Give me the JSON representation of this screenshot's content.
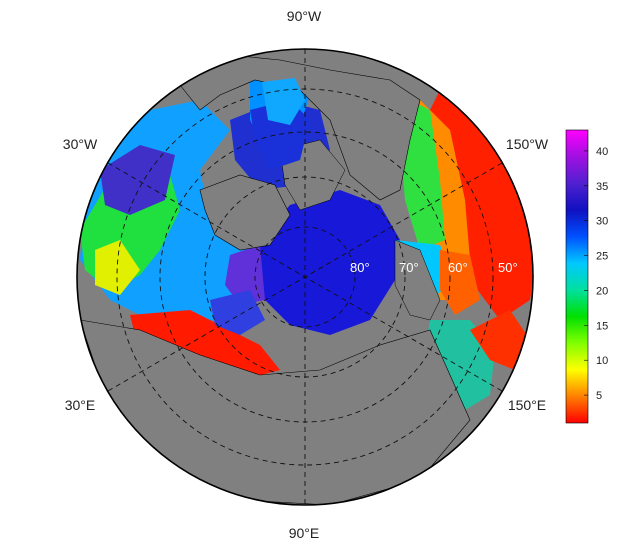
{
  "map": {
    "projection": "north-polar-stereographic",
    "land_color": "#808080",
    "border_color": "#000000",
    "graticule_style": "dashed",
    "longitude_labels": [
      {
        "id": "lon-90w-top",
        "text": "90°W"
      },
      {
        "id": "lon-30w",
        "text": "30°W"
      },
      {
        "id": "lon-150w",
        "text": "150°W"
      },
      {
        "id": "lon-30e",
        "text": "30°E"
      },
      {
        "id": "lon-150e",
        "text": "150°E"
      },
      {
        "id": "lon-90e-bottom",
        "text": "90°E"
      }
    ],
    "latitude_labels": [
      "80°",
      "70°",
      "60°",
      "50°"
    ]
  },
  "colorbar": {
    "ticks": [
      5,
      10,
      15,
      20,
      25,
      30,
      35,
      40
    ],
    "min": 1,
    "max": 43,
    "palette": [
      "#ff0000",
      "#ff8000",
      "#ffff00",
      "#80ff00",
      "#00e000",
      "#00e0a0",
      "#00c8ff",
      "#0050ff",
      "#1010c0",
      "#5020d0",
      "#a010e0",
      "#ff00ff"
    ]
  }
}
